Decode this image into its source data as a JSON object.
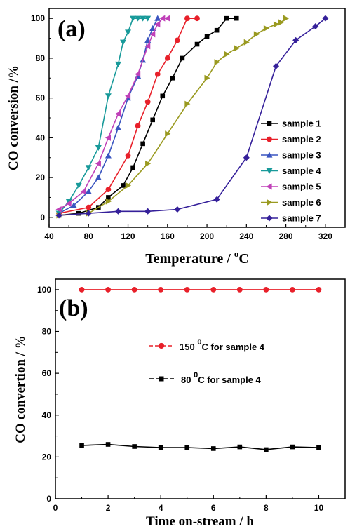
{
  "chart_data": [
    {
      "type": "line",
      "panel_label": "(a)",
      "xlabel": "Temperature / °C",
      "xlabel_parts": [
        "Temperature / ",
        "o",
        "C"
      ],
      "ylabel": "CO conversion /%",
      "xlim": [
        40,
        340
      ],
      "ylim": [
        -5,
        105
      ],
      "xticks": [
        40,
        80,
        120,
        160,
        200,
        240,
        280,
        320
      ],
      "yticks": [
        0,
        20,
        40,
        60,
        80,
        100
      ],
      "legend_position": "center-right",
      "series": [
        {
          "name": "sample 1",
          "color": "#000000",
          "marker": "square",
          "x": [
            50,
            70,
            90,
            100,
            115,
            125,
            135,
            145,
            155,
            165,
            175,
            190,
            200,
            210,
            220,
            230
          ],
          "y": [
            1,
            2,
            5,
            10,
            16,
            25,
            37,
            49,
            61,
            70,
            80,
            87,
            91,
            94,
            100,
            100
          ]
        },
        {
          "name": "sample 2",
          "color": "#e8202a",
          "marker": "circle",
          "x": [
            50,
            80,
            100,
            120,
            130,
            140,
            150,
            160,
            170,
            180,
            190
          ],
          "y": [
            2,
            5,
            14,
            31,
            46,
            58,
            72,
            80,
            89,
            100,
            100
          ]
        },
        {
          "name": "sample 3",
          "color": "#3a55c0",
          "marker": "triangle-up",
          "x": [
            50,
            65,
            80,
            90,
            100,
            110,
            120,
            130,
            135,
            140,
            145,
            150
          ],
          "y": [
            2,
            6,
            13,
            20,
            31,
            45,
            60,
            71,
            79,
            89,
            95,
            100
          ]
        },
        {
          "name": "sample 4",
          "color": "#189a9a",
          "marker": "triangle-down",
          "x": [
            50,
            60,
            70,
            80,
            90,
            100,
            110,
            115,
            120,
            125,
            130,
            135,
            140
          ],
          "y": [
            2,
            8,
            16,
            25,
            35,
            61,
            77,
            88,
            93,
            100,
            100,
            100,
            100
          ]
        },
        {
          "name": "sample 5",
          "color": "#c040b8",
          "marker": "triangle-left",
          "x": [
            50,
            60,
            75,
            90,
            100,
            110,
            120,
            130,
            140,
            145,
            150,
            155,
            160
          ],
          "y": [
            4,
            7,
            13,
            27,
            40,
            52,
            61,
            72,
            86,
            92,
            97,
            100,
            100
          ]
        },
        {
          "name": "sample 6",
          "color": "#9a9a20",
          "marker": "triangle-right",
          "x": [
            50,
            80,
            100,
            120,
            140,
            160,
            180,
            200,
            210,
            220,
            230,
            240,
            250,
            260,
            270,
            275,
            280
          ],
          "y": [
            1,
            2,
            8,
            16,
            27,
            42,
            57,
            70,
            78,
            82,
            85,
            88,
            92,
            95,
            97,
            98,
            100
          ]
        },
        {
          "name": "sample 7",
          "color": "#35209a",
          "marker": "diamond",
          "x": [
            50,
            80,
            110,
            140,
            170,
            210,
            240,
            270,
            290,
            310,
            320
          ],
          "y": [
            1,
            2,
            3,
            3,
            4,
            9,
            30,
            76,
            89,
            96,
            100
          ]
        }
      ]
    },
    {
      "type": "line",
      "panel_label": "(b)",
      "xlabel": "Time on-stream / h",
      "ylabel": "CO convertion / %",
      "xlim": [
        0,
        11
      ],
      "ylim": [
        0,
        105
      ],
      "xticks": [
        0,
        2,
        4,
        6,
        8,
        10
      ],
      "yticks": [
        0,
        20,
        40,
        60,
        80,
        100
      ],
      "legend_position": "center",
      "series": [
        {
          "name": "150 °C for sample 4",
          "name_parts": [
            "150 ",
            "0",
            "C for sample 4"
          ],
          "color": "#e8202a",
          "marker": "circle",
          "x": [
            1,
            2,
            3,
            4,
            5,
            6,
            7,
            8,
            9,
            10
          ],
          "y": [
            100,
            100,
            100,
            100,
            100,
            100,
            100,
            100,
            100,
            100
          ]
        },
        {
          "name": "80 °C for sample 4",
          "name_parts": [
            "80 ",
            "0",
            "C  for sample 4"
          ],
          "color": "#000000",
          "marker": "square",
          "x": [
            1,
            2,
            3,
            4,
            5,
            6,
            7,
            8,
            9,
            10
          ],
          "y": [
            25.5,
            26,
            25,
            24.5,
            24.5,
            24,
            24.8,
            23.5,
            24.8,
            24.5
          ]
        }
      ]
    }
  ]
}
